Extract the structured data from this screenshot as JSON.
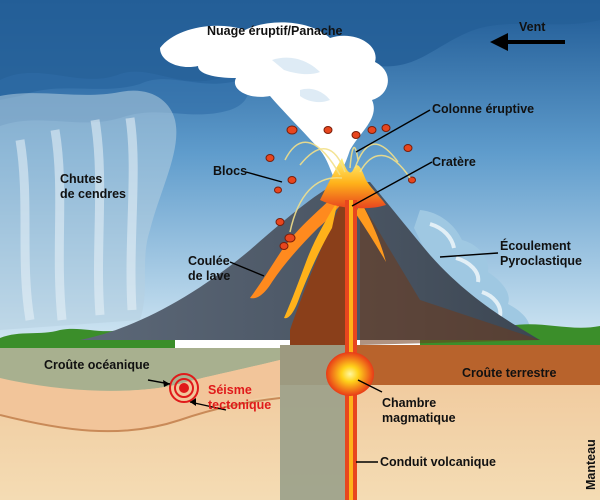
{
  "labels": {
    "nuage": "Nuage éruptif/Panache",
    "vent": "Vent",
    "colonne": "Colonne éruptive",
    "blocs": "Blocs",
    "cratere": "Cratère",
    "chutes": "Chutes\nde cendres",
    "coulee": "Coulée\nde lave",
    "ecoulement": "Écoulement\nPyroclastique",
    "croute_oceanique": "Croûte océanique",
    "seisme": "Séisme\ntectonique",
    "croute_terrestre": "Croûte terrestre",
    "chambre": "Chambre\nmagmatique",
    "conduit": "Conduit volcanique",
    "manteau": "Manteau"
  },
  "colors": {
    "sky": "#2b6aa6",
    "plume": "#ffffff",
    "volcano": "#4f5c6a",
    "magma": "#e8461e",
    "magma_core": "#ffe600",
    "mantle": "#f1d7a8",
    "crust": "#b9642e",
    "oceanic": "#9aa48a",
    "label_red": "#e01a1a"
  }
}
